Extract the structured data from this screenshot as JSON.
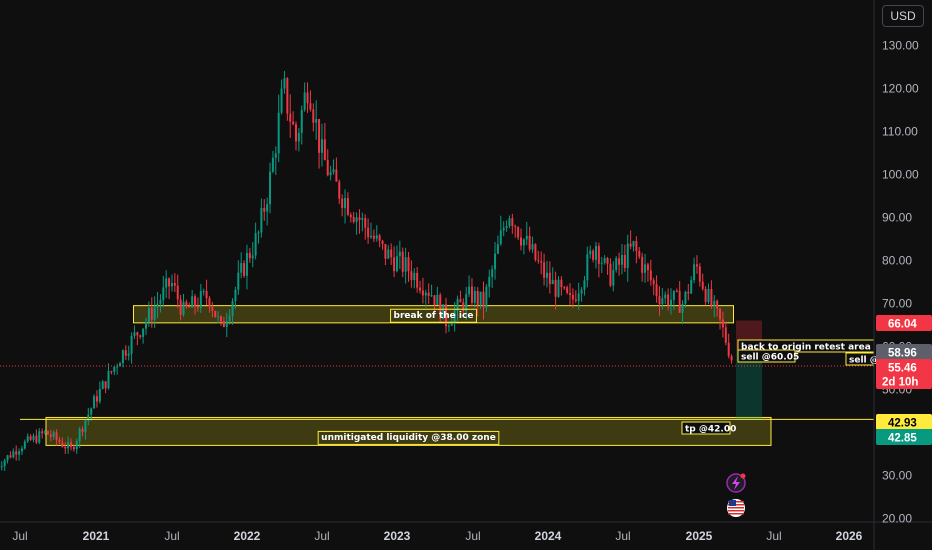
{
  "currency_button": "USD",
  "chart_data": {
    "type": "candlestick",
    "x_labels": [
      "Jul",
      "2021",
      "Jul",
      "2022",
      "Jul",
      "2023",
      "Jul",
      "2024",
      "Jul",
      "2025",
      "Jul",
      "2026"
    ],
    "y_ticks": [
      20,
      30,
      40,
      50,
      60,
      70,
      80,
      90,
      100,
      110,
      120,
      130
    ],
    "y_tick_labels": [
      "20.00",
      "30.00",
      "40.00",
      "50.00",
      "60.00",
      "70.00",
      "80.00",
      "90.00",
      "100.00",
      "110.00",
      "120.00",
      "130.00"
    ],
    "ylim": [
      19,
      138
    ],
    "grid": false,
    "price_keypoints": [
      [
        "2020-05",
        32
      ],
      [
        "2020-07",
        37
      ],
      [
        "2020-09",
        40
      ],
      [
        "2020-11",
        36
      ],
      [
        "2021-01",
        48
      ],
      [
        "2021-03",
        58
      ],
      [
        "2021-05",
        66
      ],
      [
        "2021-07",
        75
      ],
      [
        "2021-08",
        68
      ],
      [
        "2021-10",
        72
      ],
      [
        "2021-11",
        64
      ],
      [
        "2022-01",
        80
      ],
      [
        "2022-02",
        86
      ],
      [
        "2022-03",
        100
      ],
      [
        "2022-04",
        120
      ],
      [
        "2022-05",
        108
      ],
      [
        "2022-06",
        122
      ],
      [
        "2022-07",
        105
      ],
      [
        "2022-08",
        98
      ],
      [
        "2022-10",
        90
      ],
      [
        "2022-12",
        82
      ],
      [
        "2023-02",
        78
      ],
      [
        "2023-04",
        72
      ],
      [
        "2023-05",
        66
      ],
      [
        "2023-07",
        72
      ],
      [
        "2023-08",
        70
      ],
      [
        "2023-10",
        92
      ],
      [
        "2023-11",
        86
      ],
      [
        "2024-01",
        76
      ],
      [
        "2024-03",
        70
      ],
      [
        "2024-05",
        84
      ],
      [
        "2024-06",
        76
      ],
      [
        "2024-08",
        83
      ],
      [
        "2024-10",
        72
      ],
      [
        "2024-12",
        70
      ],
      [
        "2025-01",
        79
      ],
      [
        "2025-02",
        71
      ],
      [
        "2025-03",
        65
      ],
      [
        "2025-04",
        56
      ]
    ],
    "zones": [
      {
        "label": "break of the ice",
        "low": 65.5,
        "high": 69.5,
        "x_start": "2021-04",
        "x_end": "2025-04"
      },
      {
        "label": "unmitigated liquidity @38.00 zone",
        "low": 37.0,
        "high": 43.5,
        "x_start": "2020-09",
        "x_end": "2025-07"
      }
    ],
    "position": {
      "entry": 58.96,
      "stop": 66.04,
      "target": 42.93
    },
    "annotations": [
      {
        "text": "back to origin retest area safe s"
      },
      {
        "text": "sell @60.05"
      },
      {
        "text": "sell @"
      },
      {
        "text": "tp @42.00"
      }
    ],
    "price_labels": [
      {
        "value": "66.04",
        "bg": "#f23645",
        "fg": "#ffffff"
      },
      {
        "value": "58.96",
        "bg": "#5d606b",
        "fg": "#ffffff"
      },
      {
        "value": "55.46",
        "sub": "2d 10h",
        "bg": "#f23645",
        "fg": "#ffffff"
      },
      {
        "value": "42.93",
        "bg": "#ffeb3b",
        "fg": "#000000"
      },
      {
        "value": "42.85",
        "bg": "#089981",
        "fg": "#ffffff"
      }
    ],
    "colors": {
      "up": "#089981",
      "down": "#f23645",
      "zone_border": "#ffeb3b",
      "background": "#0f0f0f"
    }
  }
}
